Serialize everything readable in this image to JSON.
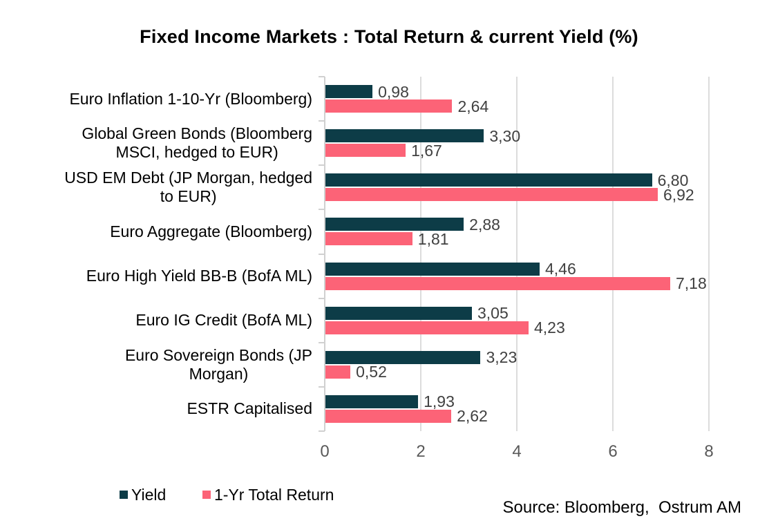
{
  "title": "Fixed Income Markets : Total Return & current Yield (%)",
  "source": "Source: Bloomberg,  Ostrum AM",
  "legend": {
    "items": [
      {
        "label": "Yield",
        "color": "#0d3c47"
      },
      {
        "label": "1-Yr Total Return",
        "color": "#fc6377"
      }
    ],
    "position": "bottom-left"
  },
  "colors": {
    "yield_bar": "#0d3c47",
    "return_bar": "#fc6377",
    "gridline": "#dcdcdc",
    "axis": "#d0d0d0",
    "value_label_text": "#404040",
    "axis_tick_text": "#595959",
    "category_text": "#000000"
  },
  "chart_data": {
    "type": "bar",
    "orientation": "horizontal",
    "title": "Fixed Income Markets : Total Return & current Yield (%)",
    "categories": [
      "Euro Inflation 1-10-Yr (Bloomberg)",
      "Global Green Bonds (Bloomberg MSCI, hedged to EUR)",
      "USD EM Debt (JP Morgan, hedged to EUR)",
      "Euro Aggregate (Bloomberg)",
      "Euro High Yield BB-B (BofA ML)",
      "Euro IG Credit (BofA ML)",
      "Euro Sovereign Bonds (JP Morgan)",
      "ESTR Capitalised"
    ],
    "categories_lines": [
      [
        "Euro Inflation 1-10-Yr (Bloomberg)"
      ],
      [
        "Global Green Bonds (Bloomberg",
        "MSCI, hedged to EUR)"
      ],
      [
        "USD EM Debt (JP Morgan, hedged",
        "to EUR)"
      ],
      [
        "Euro Aggregate (Bloomberg)"
      ],
      [
        "Euro High Yield BB-B (BofA ML)"
      ],
      [
        "Euro IG Credit (BofA ML)"
      ],
      [
        "Euro Sovereign Bonds (JP",
        "Morgan)"
      ],
      [
        "ESTR Capitalised"
      ]
    ],
    "series": [
      {
        "name": "Yield",
        "color": "#0d3c47",
        "values": [
          0.98,
          3.3,
          6.8,
          2.88,
          4.46,
          3.05,
          3.23,
          1.93
        ],
        "data_labels": [
          "0,98",
          "3,30",
          "6,80",
          "2,88",
          "4,46",
          "3,05",
          "3,23",
          "1,93"
        ]
      },
      {
        "name": "1-Yr Total Return",
        "color": "#fc6377",
        "values": [
          2.64,
          1.67,
          6.92,
          1.81,
          7.18,
          4.23,
          0.52,
          2.62
        ],
        "data_labels": [
          "2,64",
          "1,67",
          "6,92",
          "1,81",
          "7,18",
          "4,23",
          "0,52",
          "2,62"
        ]
      }
    ],
    "x_axis": {
      "ticks": [
        0,
        2,
        4,
        6,
        8
      ],
      "tick_labels": [
        "0",
        "2",
        "4",
        "6",
        "8"
      ],
      "range": [
        0,
        8.5
      ],
      "grid": true
    },
    "decimal_separator": ",",
    "legend_position": "bottom-left"
  }
}
